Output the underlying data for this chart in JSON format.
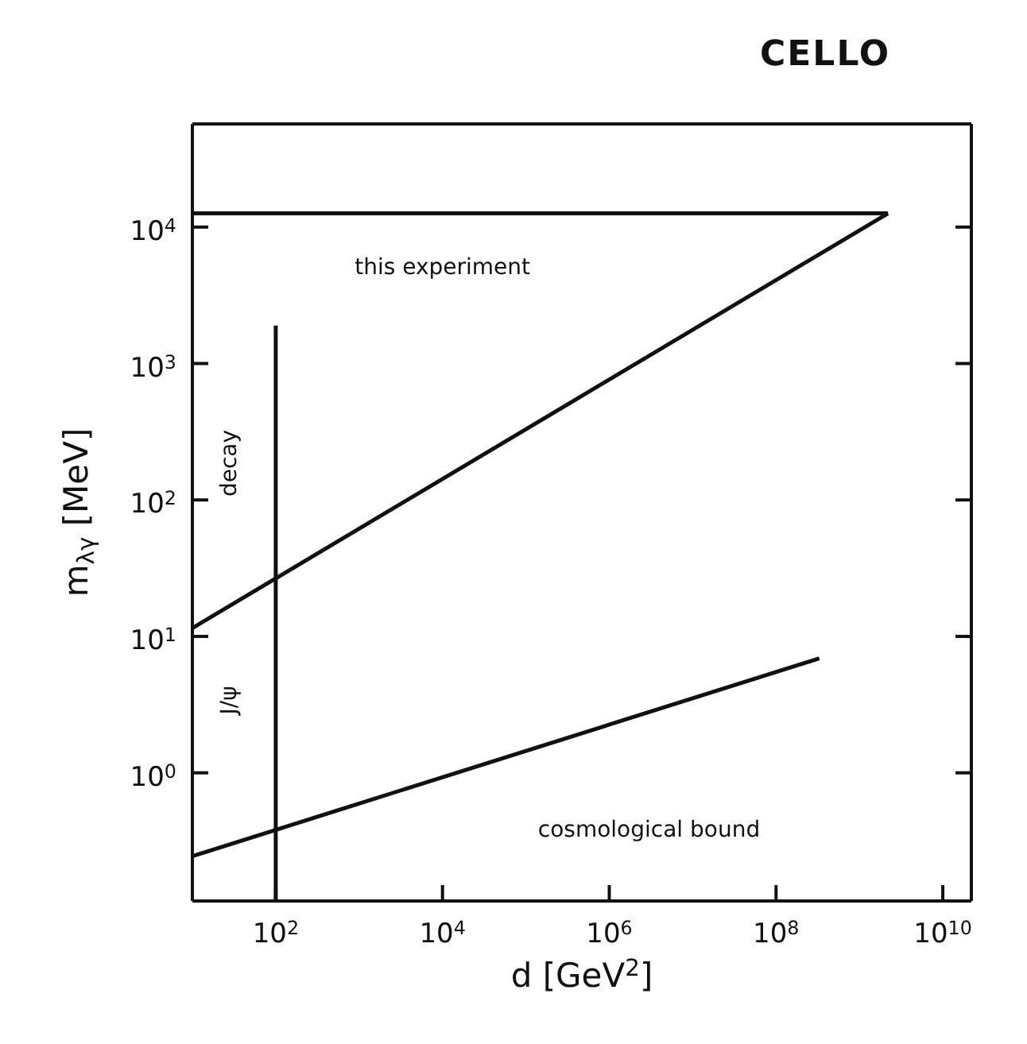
{
  "chart_data": {
    "type": "line",
    "title": "CELLO",
    "xlabel": "d [GeV$^{2}$]",
    "ylabel": "m$_{λγ}$ [MeV]",
    "log": "xy",
    "grid": false,
    "legend": false,
    "marker": "none",
    "line_style": "solid",
    "xlim": [
      10,
      22000000000
    ],
    "ylim": [
      0.115,
      57000
    ],
    "xticks": [
      {
        "value": 100,
        "label": "10$^{2}$"
      },
      {
        "value": 10000,
        "label": "10$^{4}$"
      },
      {
        "value": 1000000,
        "label": "10$^{6}$"
      },
      {
        "value": 100000000,
        "label": "10$^{8}$"
      },
      {
        "value": 10000000000,
        "label": "10$^{10}$"
      }
    ],
    "yticks": [
      {
        "value": 1,
        "label": "10$^{0}$"
      },
      {
        "value": 10,
        "label": "10$^{1}$"
      },
      {
        "value": 100,
        "label": "10$^{2}$"
      },
      {
        "value": 1000,
        "label": "10$^{3}$"
      },
      {
        "value": 10000,
        "label": "10$^{4}$"
      }
    ],
    "series": [
      {
        "color": "#111111",
        "x": [
          10,
          2200000000
        ],
        "values": [
          12600,
          12600
        ]
      },
      {
        "color": "#111111",
        "x": [
          10,
          2200000000
        ],
        "values": [
          11.5,
          12600
        ]
      },
      {
        "color": "#111111",
        "x": [
          100,
          100
        ],
        "values": [
          0.115,
          1900
        ]
      },
      {
        "color": "#111111",
        "x": [
          10,
          330000000
        ],
        "values": [
          0.245,
          6.9
        ]
      }
    ],
    "annotations": [
      "this experiment",
      "decay",
      "J/ψ",
      "cosmological bound"
    ]
  }
}
